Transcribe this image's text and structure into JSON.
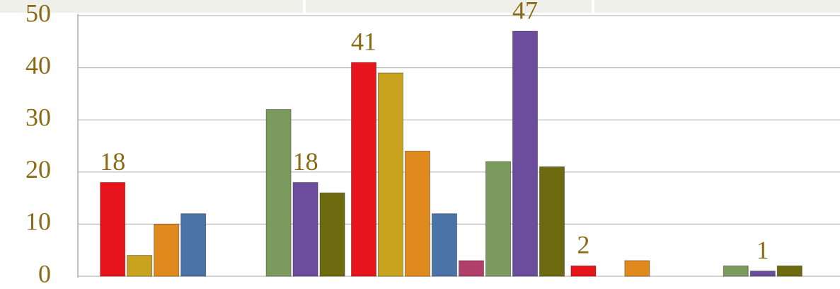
{
  "chart_data": {
    "type": "bar",
    "categories": [
      null,
      null,
      null,
      null,
      null
    ],
    "series": [
      {
        "color": "#e8141c",
        "values": [
          18,
          null,
          41,
          2,
          null
        ],
        "data_labels": [
          true,
          false,
          true,
          true,
          false
        ]
      },
      {
        "color": "#c9a21e",
        "values": [
          4,
          null,
          39,
          0,
          null
        ],
        "data_labels": [
          false,
          false,
          false,
          false,
          false
        ]
      },
      {
        "color": "#e08a1e",
        "values": [
          10,
          null,
          24,
          3,
          null
        ],
        "data_labels": [
          false,
          false,
          false,
          false,
          false
        ]
      },
      {
        "color": "#4a74a8",
        "values": [
          12,
          null,
          12,
          null,
          null
        ],
        "data_labels": [
          false,
          false,
          false,
          false,
          false
        ]
      },
      {
        "color": "#b0406a",
        "values": [
          null,
          null,
          3,
          null,
          null
        ],
        "data_labels": [
          false,
          false,
          false,
          false,
          false
        ]
      },
      {
        "color": "#7a9a5e",
        "values": [
          null,
          32,
          22,
          null,
          2
        ],
        "data_labels": [
          false,
          false,
          false,
          false,
          false
        ]
      },
      {
        "color": "#6c4c9c",
        "values": [
          null,
          18,
          47,
          null,
          1
        ],
        "data_labels": [
          false,
          true,
          true,
          false,
          true
        ]
      },
      {
        "color": "#6e6a10",
        "values": [
          null,
          16,
          21,
          null,
          2
        ],
        "data_labels": [
          false,
          false,
          false,
          false,
          false
        ]
      }
    ],
    "ylim": [
      0,
      50
    ],
    "yticks": [
      0,
      10,
      20,
      30,
      40,
      50
    ],
    "grid": true
  }
}
